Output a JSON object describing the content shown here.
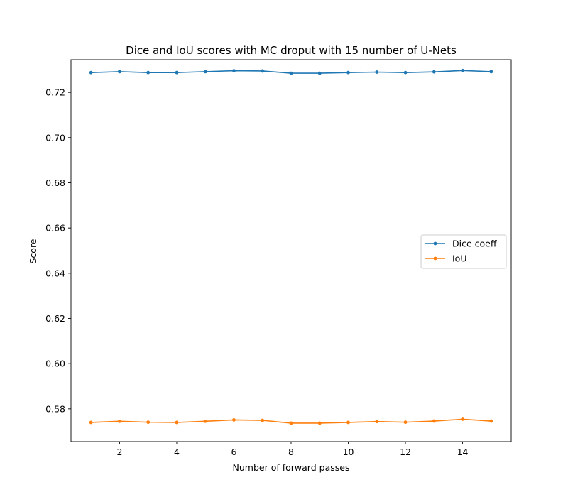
{
  "chart_data": {
    "type": "line",
    "title": "Dice and IoU scores with MC droput with 15 number of U-Nets",
    "xlabel": "Number of forward passes",
    "ylabel": "Score",
    "x": [
      1,
      2,
      3,
      4,
      5,
      6,
      7,
      8,
      9,
      10,
      11,
      12,
      13,
      14,
      15
    ],
    "xlim": [
      0.3,
      15.7
    ],
    "ylim": [
      0.5655,
      0.7345
    ],
    "xticks": [
      2,
      4,
      6,
      8,
      10,
      12,
      14
    ],
    "yticks": [
      0.58,
      0.6,
      0.62,
      0.64,
      0.66,
      0.68,
      0.7,
      0.72
    ],
    "ytick_labels": [
      "0.58",
      "0.60",
      "0.62",
      "0.64",
      "0.66",
      "0.68",
      "0.70",
      "0.72"
    ],
    "grid": false,
    "legend_position": "center-right",
    "series": [
      {
        "name": "Dice coeff",
        "color": "#1f77b4",
        "values": [
          0.7288,
          0.7292,
          0.7288,
          0.7288,
          0.7292,
          0.7296,
          0.7295,
          0.7285,
          0.7285,
          0.7288,
          0.729,
          0.7288,
          0.7291,
          0.7297,
          0.7292
        ]
      },
      {
        "name": "IoU",
        "color": "#ff7f0e",
        "values": [
          0.574,
          0.5745,
          0.5741,
          0.574,
          0.5745,
          0.5751,
          0.5749,
          0.5737,
          0.5737,
          0.574,
          0.5744,
          0.5741,
          0.5746,
          0.5754,
          0.5746
        ]
      }
    ]
  }
}
